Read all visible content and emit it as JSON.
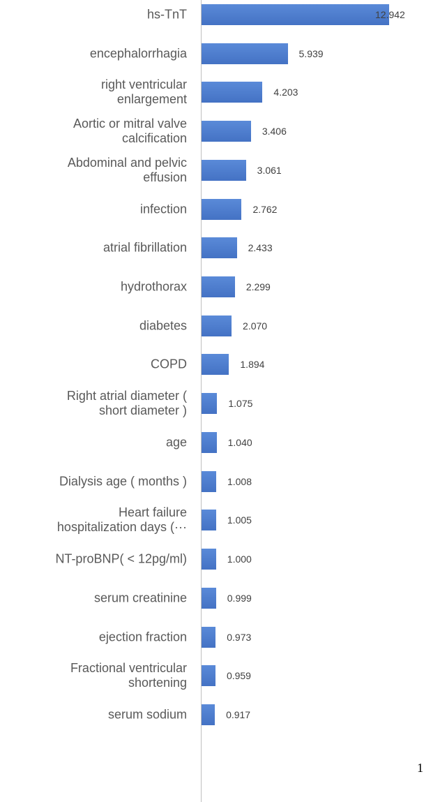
{
  "chart_data": {
    "type": "bar",
    "orientation": "horizontal",
    "color": "#4472c4",
    "categories": [
      "hs-TnT",
      "encephalorrhagia",
      "right ventricular\nenlargement",
      "Aortic or mitral valve\ncalcification",
      "Abdominal and pelvic\neffusion",
      "infection",
      "atrial fibrillation",
      "hydrothorax",
      "diabetes",
      "COPD",
      "Right atrial diameter (\nshort diameter )",
      "age",
      "Dialysis age ( months )",
      "Heart failure\nhospitalization days (···",
      "NT-proBNP( < 12pg/ml)",
      "serum creatinine",
      "ejection fraction",
      "Fractional ventricular\nshortening",
      "serum sodium"
    ],
    "values": [
      12.942,
      5.939,
      4.203,
      3.406,
      3.061,
      2.762,
      2.433,
      2.299,
      2.07,
      1.894,
      1.075,
      1.04,
      1.008,
      1.005,
      1.0,
      0.999,
      0.973,
      0.959,
      0.917
    ],
    "value_labels": [
      "12.942",
      "5.939",
      "4.203",
      "3.406",
      "3.061",
      "2.762",
      "2.433",
      "2.299",
      "2.070",
      "1.894",
      "1.075",
      "1.040",
      "1.008",
      "1.005",
      "1.000",
      "0.999",
      "0.973",
      "0.959",
      "0.917"
    ]
  },
  "page_marker": "1"
}
